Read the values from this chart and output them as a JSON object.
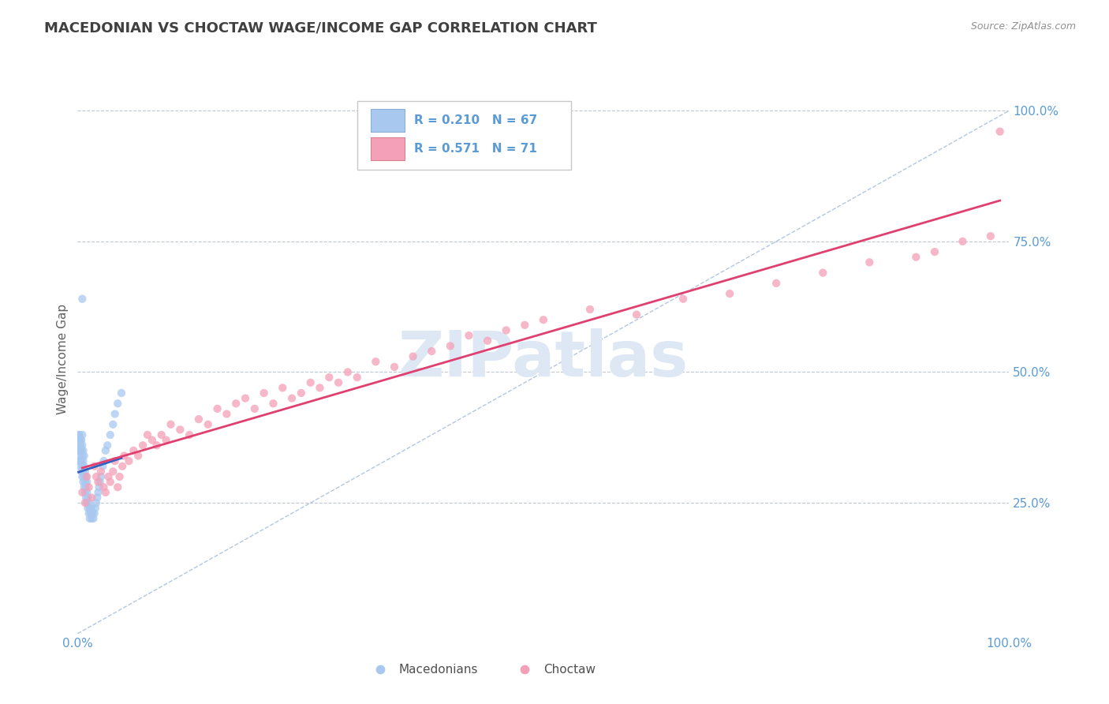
{
  "title": "MACEDONIAN VS CHOCTAW WAGE/INCOME GAP CORRELATION CHART",
  "source": "Source: ZipAtlas.com",
  "ylabel": "Wage/Income Gap",
  "y_tick_values": [
    0.25,
    0.5,
    0.75,
    1.0
  ],
  "y_tick_labels": [
    "25.0%",
    "50.0%",
    "75.0%",
    "100.0%"
  ],
  "legend_mac": {
    "R": "0.210",
    "N": "67"
  },
  "legend_choc": {
    "R": "0.571",
    "N": "71"
  },
  "macedonian_color": "#a8c8f0",
  "choctaw_color": "#f4a0b8",
  "mac_line_color": "#3060c0",
  "choc_line_color": "#e04070",
  "ref_line_color": "#a0b8d8",
  "watermark": "ZIPatlas",
  "watermark_color": "#dde8f4",
  "title_color": "#404040",
  "tick_label_color": "#5b9bd5",
  "xlim": [
    0.0,
    1.0
  ],
  "ylim": [
    0.0,
    1.05
  ],
  "mac_x": [
    0.001,
    0.001,
    0.001,
    0.002,
    0.002,
    0.002,
    0.002,
    0.003,
    0.003,
    0.003,
    0.003,
    0.003,
    0.004,
    0.004,
    0.004,
    0.004,
    0.005,
    0.005,
    0.005,
    0.005,
    0.005,
    0.006,
    0.006,
    0.006,
    0.006,
    0.007,
    0.007,
    0.007,
    0.007,
    0.008,
    0.008,
    0.008,
    0.009,
    0.009,
    0.009,
    0.01,
    0.01,
    0.01,
    0.011,
    0.011,
    0.012,
    0.012,
    0.013,
    0.013,
    0.014,
    0.015,
    0.015,
    0.016,
    0.017,
    0.018,
    0.019,
    0.02,
    0.021,
    0.022,
    0.023,
    0.024,
    0.025,
    0.027,
    0.028,
    0.03,
    0.032,
    0.035,
    0.038,
    0.04,
    0.043,
    0.047,
    0.005
  ],
  "mac_y": [
    0.37,
    0.38,
    0.35,
    0.33,
    0.36,
    0.34,
    0.38,
    0.32,
    0.35,
    0.33,
    0.36,
    0.37,
    0.31,
    0.33,
    0.35,
    0.37,
    0.3,
    0.32,
    0.34,
    0.36,
    0.38,
    0.29,
    0.31,
    0.33,
    0.35,
    0.28,
    0.3,
    0.32,
    0.34,
    0.27,
    0.29,
    0.31,
    0.26,
    0.28,
    0.3,
    0.25,
    0.27,
    0.29,
    0.24,
    0.26,
    0.23,
    0.25,
    0.22,
    0.24,
    0.23,
    0.22,
    0.24,
    0.23,
    0.22,
    0.23,
    0.24,
    0.25,
    0.26,
    0.27,
    0.28,
    0.29,
    0.3,
    0.32,
    0.33,
    0.35,
    0.36,
    0.38,
    0.4,
    0.42,
    0.44,
    0.46,
    0.64
  ],
  "choc_x": [
    0.005,
    0.008,
    0.01,
    0.012,
    0.015,
    0.018,
    0.02,
    0.022,
    0.025,
    0.028,
    0.03,
    0.033,
    0.035,
    0.038,
    0.04,
    0.043,
    0.045,
    0.048,
    0.05,
    0.055,
    0.06,
    0.065,
    0.07,
    0.075,
    0.08,
    0.085,
    0.09,
    0.095,
    0.1,
    0.11,
    0.12,
    0.13,
    0.14,
    0.15,
    0.16,
    0.17,
    0.18,
    0.19,
    0.2,
    0.21,
    0.22,
    0.23,
    0.24,
    0.25,
    0.26,
    0.27,
    0.28,
    0.29,
    0.3,
    0.32,
    0.34,
    0.36,
    0.38,
    0.4,
    0.42,
    0.44,
    0.46,
    0.48,
    0.5,
    0.55,
    0.6,
    0.65,
    0.7,
    0.75,
    0.8,
    0.85,
    0.9,
    0.92,
    0.95,
    0.98,
    0.99
  ],
  "choc_y": [
    0.27,
    0.25,
    0.3,
    0.28,
    0.26,
    0.32,
    0.3,
    0.29,
    0.31,
    0.28,
    0.27,
    0.3,
    0.29,
    0.31,
    0.33,
    0.28,
    0.3,
    0.32,
    0.34,
    0.33,
    0.35,
    0.34,
    0.36,
    0.38,
    0.37,
    0.36,
    0.38,
    0.37,
    0.4,
    0.39,
    0.38,
    0.41,
    0.4,
    0.43,
    0.42,
    0.44,
    0.45,
    0.43,
    0.46,
    0.44,
    0.47,
    0.45,
    0.46,
    0.48,
    0.47,
    0.49,
    0.48,
    0.5,
    0.49,
    0.52,
    0.51,
    0.53,
    0.54,
    0.55,
    0.57,
    0.56,
    0.58,
    0.59,
    0.6,
    0.62,
    0.61,
    0.64,
    0.65,
    0.67,
    0.69,
    0.71,
    0.72,
    0.73,
    0.75,
    0.76,
    0.96
  ]
}
